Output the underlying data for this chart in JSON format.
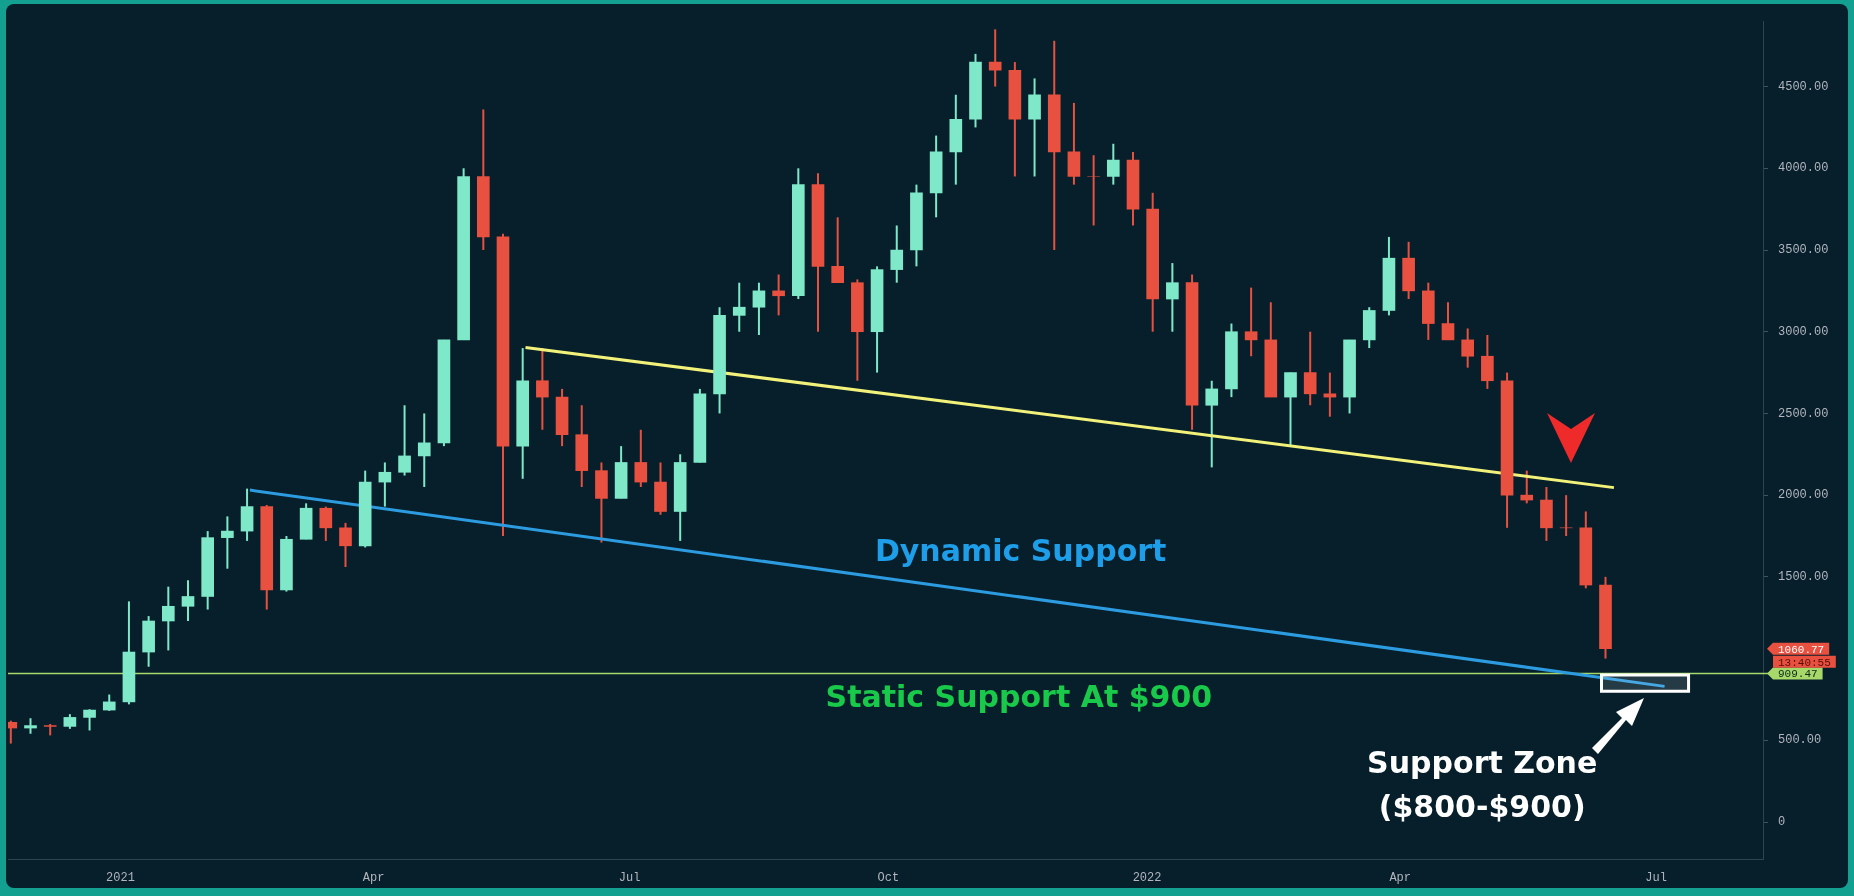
{
  "chart_data": {
    "type": "candlestick",
    "x": [
      "2020-11-23",
      "2020-11-30",
      "2020-12-07",
      "2020-12-14",
      "2020-12-21",
      "2020-12-28",
      "2021-01-04",
      "2021-01-11",
      "2021-01-18",
      "2021-01-25",
      "2021-02-01",
      "2021-02-08",
      "2021-02-15",
      "2021-02-22",
      "2021-03-01",
      "2021-03-08",
      "2021-03-15",
      "2021-03-22",
      "2021-03-29",
      "2021-04-05",
      "2021-04-12",
      "2021-04-19",
      "2021-04-26",
      "2021-05-03",
      "2021-05-10",
      "2021-05-17",
      "2021-05-24",
      "2021-05-31",
      "2021-06-07",
      "2021-06-14",
      "2021-06-21",
      "2021-06-28",
      "2021-07-05",
      "2021-07-12",
      "2021-07-19",
      "2021-07-26",
      "2021-08-02",
      "2021-08-09",
      "2021-08-16",
      "2021-08-23",
      "2021-08-30",
      "2021-09-06",
      "2021-09-13",
      "2021-09-20",
      "2021-09-27",
      "2021-10-04",
      "2021-10-11",
      "2021-10-18",
      "2021-10-25",
      "2021-11-01",
      "2021-11-08",
      "2021-11-15",
      "2021-11-22",
      "2021-11-29",
      "2021-12-06",
      "2021-12-13",
      "2021-12-20",
      "2021-12-27",
      "2022-01-03",
      "2022-01-10",
      "2022-01-17",
      "2022-01-24",
      "2022-01-31",
      "2022-02-07",
      "2022-02-14",
      "2022-02-21",
      "2022-02-28",
      "2022-03-07",
      "2022-03-14",
      "2022-03-21",
      "2022-03-28",
      "2022-04-04",
      "2022-04-11",
      "2022-04-18",
      "2022-04-25",
      "2022-05-02",
      "2022-05-09",
      "2022-05-16",
      "2022-05-23",
      "2022-05-30",
      "2022-06-06",
      "2022-06-13"
    ],
    "ohlc": [
      [
        610,
        620,
        480,
        575
      ],
      [
        575,
        635,
        540,
        590
      ],
      [
        590,
        600,
        530,
        585
      ],
      [
        585,
        660,
        570,
        640
      ],
      [
        640,
        690,
        560,
        685
      ],
      [
        685,
        780,
        680,
        735
      ],
      [
        735,
        1350,
        720,
        1040
      ],
      [
        1040,
        1260,
        950,
        1230
      ],
      [
        1230,
        1440,
        1050,
        1320
      ],
      [
        1320,
        1480,
        1230,
        1380
      ],
      [
        1380,
        1780,
        1300,
        1740
      ],
      [
        1740,
        1870,
        1550,
        1780
      ],
      [
        1780,
        2040,
        1720,
        1930
      ],
      [
        1930,
        1940,
        1300,
        1420
      ],
      [
        1420,
        1750,
        1410,
        1730
      ],
      [
        1730,
        1950,
        1730,
        1920
      ],
      [
        1920,
        1930,
        1720,
        1800
      ],
      [
        1800,
        1830,
        1560,
        1690
      ],
      [
        1690,
        2150,
        1680,
        2080
      ],
      [
        2080,
        2200,
        1930,
        2140
      ],
      [
        2140,
        2550,
        2120,
        2240
      ],
      [
        2240,
        2500,
        2050,
        2320
      ],
      [
        2320,
        2950,
        2300,
        2950
      ],
      [
        2950,
        4000,
        2950,
        3950
      ],
      [
        3950,
        4360,
        3500,
        3580
      ],
      [
        3580,
        3600,
        1750,
        2300
      ],
      [
        2300,
        2900,
        2100,
        2700
      ],
      [
        2700,
        2900,
        2400,
        2600
      ],
      [
        2600,
        2650,
        2300,
        2370
      ],
      [
        2370,
        2550,
        2050,
        2150
      ],
      [
        2150,
        2200,
        1710,
        1980
      ],
      [
        1980,
        2300,
        1980,
        2200
      ],
      [
        2200,
        2400,
        2050,
        2080
      ],
      [
        2080,
        2200,
        1880,
        1900
      ],
      [
        1900,
        2250,
        1720,
        2200
      ],
      [
        2200,
        2650,
        2200,
        2620
      ],
      [
        2620,
        3150,
        2500,
        3100
      ],
      [
        3100,
        3300,
        3000,
        3150
      ],
      [
        3150,
        3300,
        2980,
        3250
      ],
      [
        3250,
        3350,
        3100,
        3220
      ],
      [
        3220,
        4000,
        3200,
        3900
      ],
      [
        3900,
        3970,
        3000,
        3400
      ],
      [
        3400,
        3700,
        3300,
        3300
      ],
      [
        3300,
        3320,
        2700,
        3000
      ],
      [
        3000,
        3400,
        2750,
        3380
      ],
      [
        3380,
        3650,
        3300,
        3500
      ],
      [
        3500,
        3900,
        3400,
        3850
      ],
      [
        3850,
        4200,
        3700,
        4100
      ],
      [
        4100,
        4450,
        3900,
        4300
      ],
      [
        4300,
        4700,
        4250,
        4650
      ],
      [
        4650,
        4850,
        4500,
        4600
      ],
      [
        4600,
        4650,
        3950,
        4300
      ],
      [
        4300,
        4550,
        3950,
        4450
      ],
      [
        4450,
        4780,
        3500,
        4100
      ],
      [
        4100,
        4400,
        3900,
        3950
      ],
      [
        3950,
        4080,
        3650,
        3950
      ],
      [
        3950,
        4150,
        3900,
        4050
      ],
      [
        4050,
        4100,
        3650,
        3750
      ],
      [
        3750,
        3850,
        3000,
        3200
      ],
      [
        3200,
        3420,
        3000,
        3300
      ],
      [
        3300,
        3350,
        2400,
        2550
      ],
      [
        2550,
        2700,
        2170,
        2650
      ],
      [
        2650,
        3050,
        2600,
        3000
      ],
      [
        3000,
        3270,
        2850,
        2950
      ],
      [
        2950,
        3180,
        2600,
        2600
      ],
      [
        2600,
        2750,
        2300,
        2750
      ],
      [
        2750,
        3000,
        2550,
        2620
      ],
      [
        2620,
        2750,
        2480,
        2600
      ],
      [
        2600,
        2950,
        2500,
        2950
      ],
      [
        2950,
        3150,
        2900,
        3130
      ],
      [
        3130,
        3580,
        3100,
        3450
      ],
      [
        3450,
        3550,
        3200,
        3250
      ],
      [
        3250,
        3300,
        2950,
        3050
      ],
      [
        3050,
        3180,
        2950,
        2950
      ],
      [
        2950,
        3020,
        2780,
        2850
      ],
      [
        2850,
        2980,
        2650,
        2700
      ],
      [
        2700,
        2750,
        1800,
        2000
      ],
      [
        2000,
        2150,
        1950,
        1970
      ],
      [
        1970,
        2050,
        1720,
        1800
      ],
      [
        1800,
        2000,
        1750,
        1800
      ],
      [
        1800,
        1900,
        1430,
        1450
      ],
      [
        1450,
        1500,
        1000,
        1060.77
      ]
    ],
    "colors": [
      "#e8503f",
      "#7ee8c8",
      "#e8503f",
      "#7ee8c8",
      "#7ee8c8",
      "#7ee8c8",
      "#7ee8c8",
      "#7ee8c8",
      "#7ee8c8",
      "#7ee8c8",
      "#7ee8c8",
      "#7ee8c8",
      "#7ee8c8",
      "#e8503f",
      "#7ee8c8",
      "#7ee8c8",
      "#e8503f",
      "#e8503f",
      "#7ee8c8",
      "#7ee8c8",
      "#7ee8c8",
      "#7ee8c8",
      "#7ee8c8",
      "#7ee8c8",
      "#e8503f",
      "#e8503f",
      "#7ee8c8",
      "#e8503f",
      "#e8503f",
      "#e8503f",
      "#e8503f",
      "#7ee8c8",
      "#e8503f",
      "#e8503f",
      "#7ee8c8",
      "#7ee8c8",
      "#7ee8c8",
      "#7ee8c8",
      "#7ee8c8",
      "#e8503f",
      "#7ee8c8",
      "#e8503f",
      "#e8503f",
      "#e8503f",
      "#7ee8c8",
      "#7ee8c8",
      "#7ee8c8",
      "#7ee8c8",
      "#7ee8c8",
      "#7ee8c8",
      "#e8503f",
      "#e8503f",
      "#7ee8c8",
      "#e8503f",
      "#e8503f",
      "#e8503f",
      "#7ee8c8",
      "#e8503f",
      "#e8503f",
      "#7ee8c8",
      "#e8503f",
      "#7ee8c8",
      "#7ee8c8",
      "#e8503f",
      "#e8503f",
      "#7ee8c8",
      "#e8503f",
      "#e8503f",
      "#7ee8c8",
      "#7ee8c8",
      "#7ee8c8",
      "#e8503f",
      "#e8503f",
      "#e8503f",
      "#e8503f",
      "#e8503f",
      "#e8503f",
      "#e8503f",
      "#e8503f",
      "#e8503f",
      "#e8503f",
      "#e8503f"
    ],
    "series": [
      {
        "type": "line",
        "color": "#f2f27a",
        "x": [
          "2021-05-25",
          "2022-06-16"
        ],
        "values": [
          2904,
          2046
        ]
      },
      {
        "type": "line",
        "color": "#2d9be0",
        "x": [
          "2021-02-16",
          "2022-07-04"
        ],
        "values": [
          2031,
          830
        ]
      }
    ],
    "ref_lines": [
      {
        "axis": "y",
        "value": 909.47,
        "label": "909.47",
        "color": "#a6d86a"
      }
    ],
    "bands": [
      {
        "axis": "y",
        "from": 800,
        "to": 900,
        "color": "#ffffff"
      }
    ],
    "annotations": [
      "Dynamic Support",
      "Static Support At $900",
      "Support Zone\n($800-$900)",
      "1060.77",
      "13:40:55"
    ],
    "xlim": [
      "2020-11-22",
      "2022-08-08"
    ],
    "xticks": [
      {
        "value": "2021-01-01",
        "label": "2021"
      },
      {
        "value": "2021-04-01",
        "label": "Apr"
      },
      {
        "value": "2021-07-01",
        "label": "Jul"
      },
      {
        "value": "2021-10-01",
        "label": "Oct"
      },
      {
        "value": "2022-01-01",
        "label": "2022"
      },
      {
        "value": "2022-04-01",
        "label": "Apr"
      },
      {
        "value": "2022-07-01",
        "label": "Jul"
      }
    ],
    "ylim": [
      -230,
      4900
    ],
    "yticks": [
      0,
      {
        "value": 500,
        "label": "500.00"
      },
      {
        "value": 1500,
        "label": "1500.00"
      },
      {
        "value": 2000,
        "label": "2000.00"
      },
      {
        "value": 2500,
        "label": "2500.00"
      },
      {
        "value": 3000,
        "label": "3000.00"
      },
      {
        "value": 3500,
        "label": "3500.00"
      },
      {
        "value": 4000,
        "label": "4000.00"
      },
      {
        "value": 4500,
        "label": "4500.00"
      }
    ],
    "grid": false,
    "legend": false
  }
}
